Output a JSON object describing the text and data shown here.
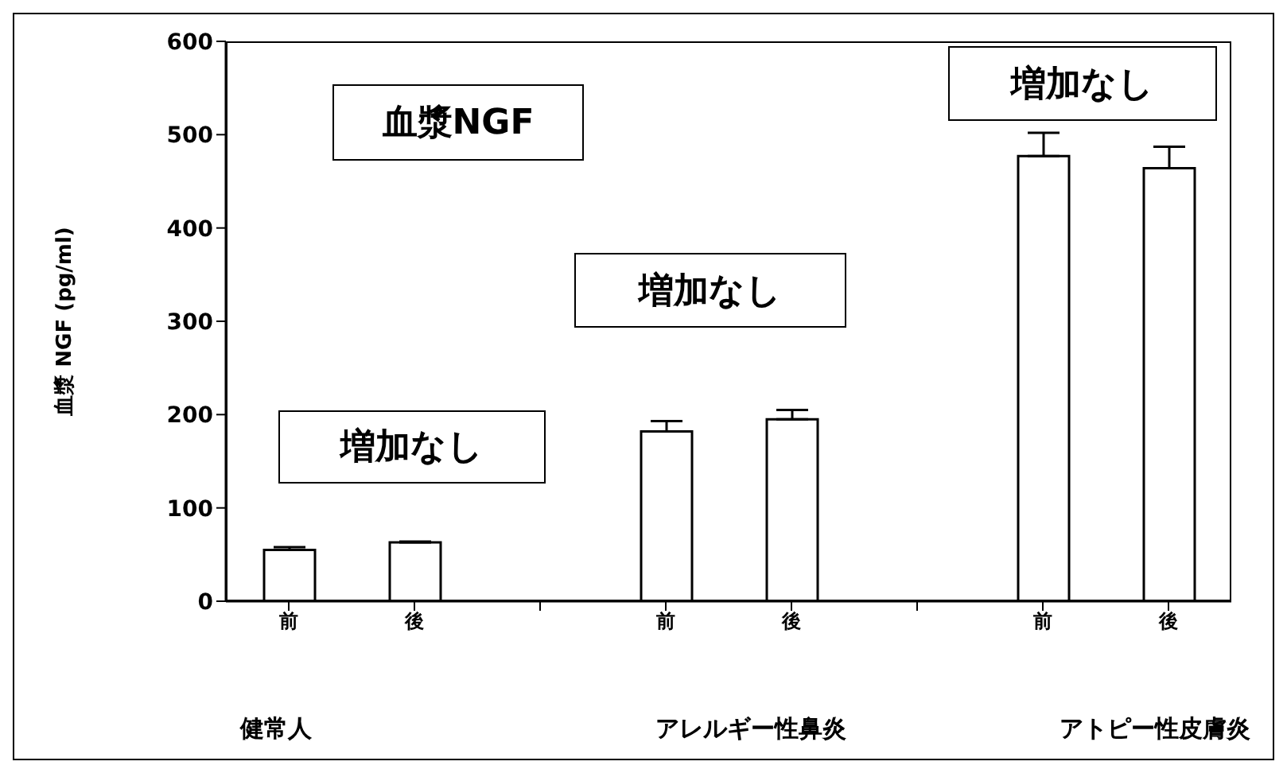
{
  "chart_data": {
    "type": "bar",
    "ylabel": "血漿 NGF (pg/ml)",
    "categories": [
      "前",
      "後",
      null,
      "前",
      "後",
      null,
      "前",
      "後"
    ],
    "values": [
      55,
      63,
      null,
      182,
      195,
      null,
      477,
      464
    ],
    "errors": [
      [
        55,
        58
      ],
      [
        63,
        64
      ],
      null,
      [
        182,
        193
      ],
      [
        195,
        205
      ],
      null,
      [
        477,
        502
      ],
      [
        464,
        487
      ]
    ],
    "color": "#ffffff",
    "ylim": [
      0,
      600
    ],
    "yticks": [
      0,
      100,
      200,
      300,
      400,
      500,
      600
    ],
    "annotations": [
      "血漿NGF",
      "増加なし",
      "増加なし",
      "増加なし",
      "健常人",
      "アレルギー性鼻炎",
      "アトピー性皮膚炎"
    ]
  }
}
